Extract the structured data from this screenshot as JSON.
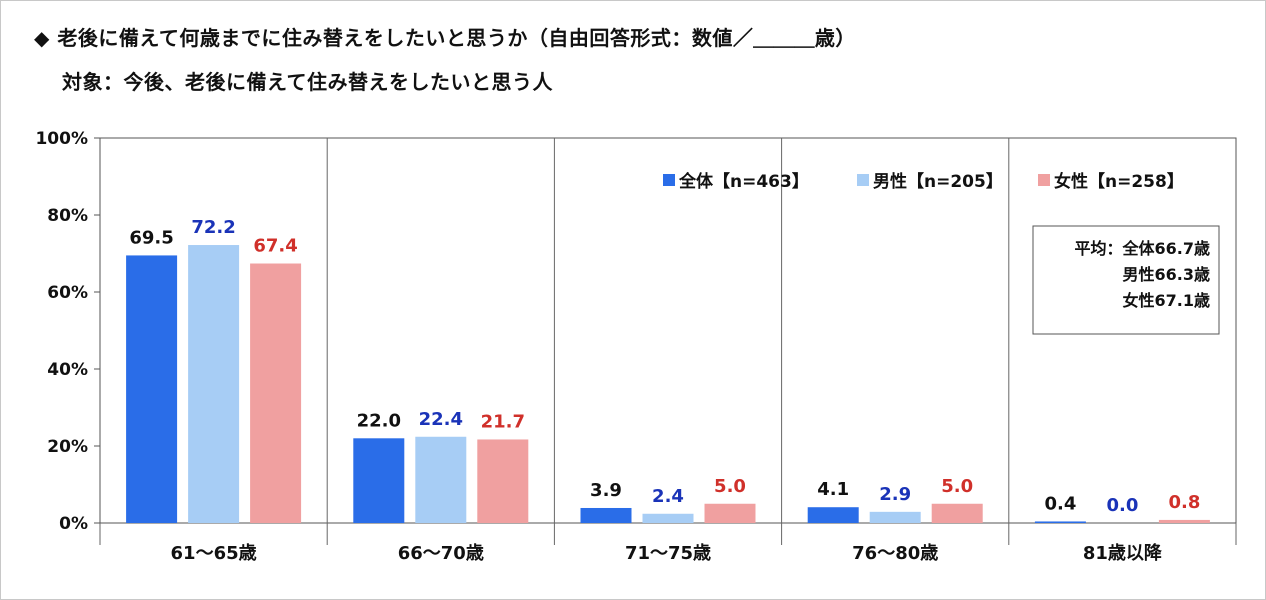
{
  "title": "◆ 老後に備えて何歳までに住み替えをしたいと思うか（自由回答形式：数値／＿＿＿歳）",
  "subtitle": "対象：今後、老後に備えて住み替えをしたいと思う人",
  "colors": {
    "all": "#2a6de8",
    "male": "#a7cdf5",
    "female": "#f0a0a0",
    "label_all": "#111111",
    "label_male": "#1a33b8",
    "label_female": "#d0302a"
  },
  "chart_data": {
    "type": "bar",
    "categories": [
      "61～65歳",
      "66～70歳",
      "71～75歳",
      "76～80歳",
      "81歳以降"
    ],
    "series": [
      {
        "name": "全体【n=463】",
        "values": [
          69.5,
          22.0,
          3.9,
          4.1,
          0.4
        ]
      },
      {
        "name": "男性【n=205】",
        "values": [
          72.2,
          22.4,
          2.4,
          2.9,
          0.0
        ]
      },
      {
        "name": "女性【n=258】",
        "values": [
          67.4,
          21.7,
          5.0,
          5.0,
          0.8
        ]
      }
    ],
    "yticks": [
      "0%",
      "20%",
      "40%",
      "60%",
      "80%",
      "100%"
    ],
    "ylim": [
      0,
      100
    ],
    "grid": false,
    "legend_position": "top-right",
    "average_box": [
      "平均：全体66.7歳",
      "男性66.3歳",
      "女性67.1歳"
    ]
  }
}
